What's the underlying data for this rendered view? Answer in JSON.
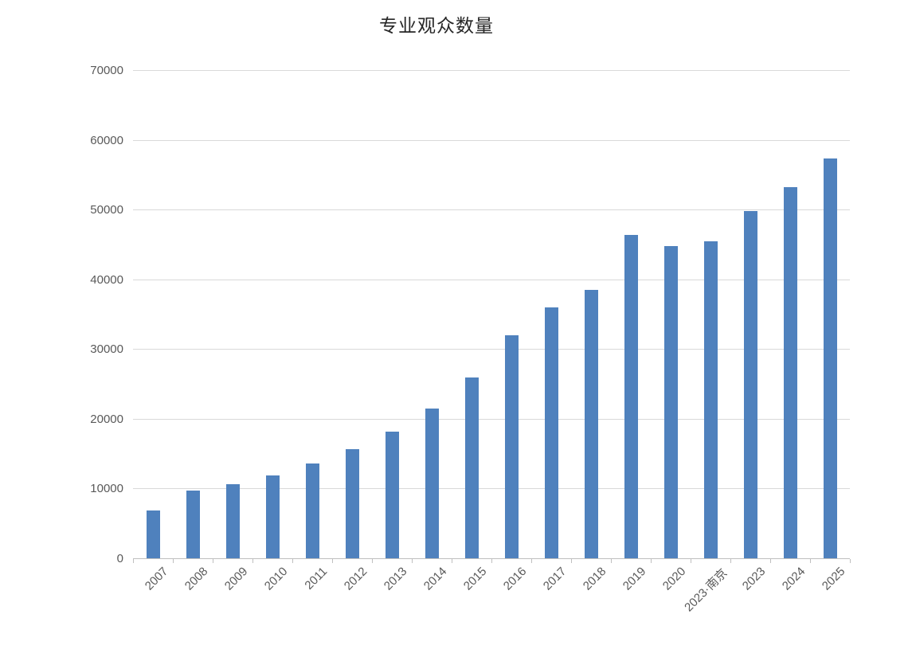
{
  "chart_data": {
    "type": "bar",
    "title": "专业观众数量",
    "categories": [
      "2007",
      "2008",
      "2009",
      "2010",
      "2011",
      "2012",
      "2013",
      "2014",
      "2015",
      "2016",
      "2017",
      "2018",
      "2019",
      "2020",
      "2023·南京",
      "2023",
      "2024",
      "2025"
    ],
    "values": [
      6800,
      9700,
      10600,
      11900,
      13600,
      15700,
      18200,
      21500,
      25900,
      32000,
      36000,
      38500,
      46400,
      44800,
      45500,
      49800,
      53200,
      57300
    ],
    "xlabel": "",
    "ylabel": "",
    "ylim": [
      0,
      70000
    ],
    "yticks": [
      0,
      10000,
      20000,
      30000,
      40000,
      50000,
      60000,
      70000
    ],
    "grid": true,
    "legend_position": "none",
    "x_label_rotation_deg": -45,
    "colors": {
      "bar": "#4f81bd",
      "gridline": "#d9d9d9",
      "axis_line": "#bfbfbf",
      "tick_label": "#595959",
      "title": "#262626",
      "background": "#ffffff"
    }
  }
}
